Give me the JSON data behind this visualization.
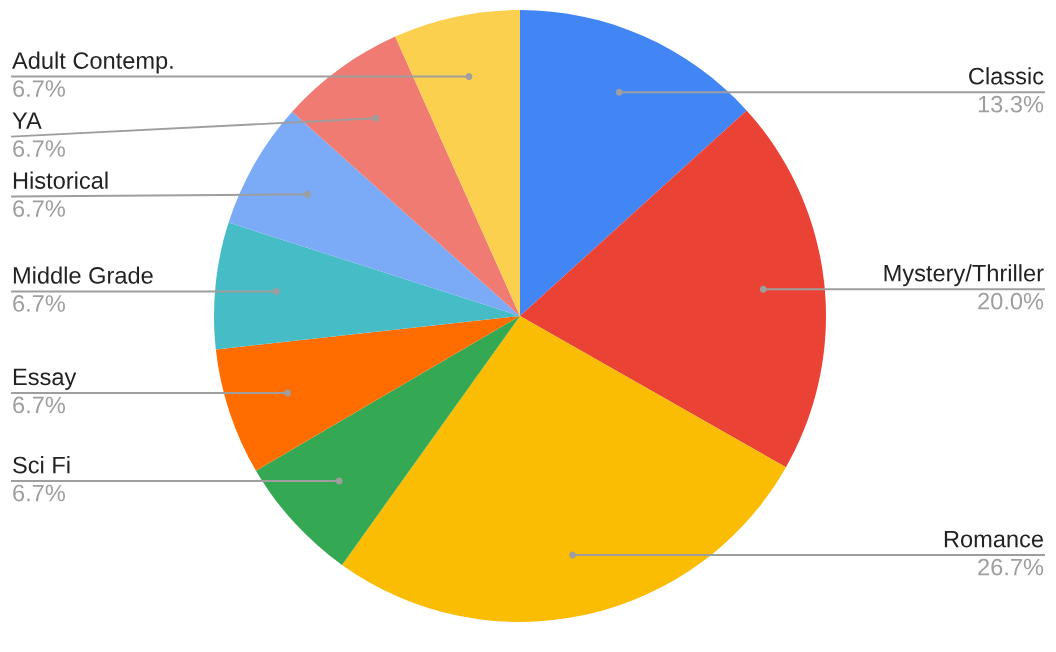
{
  "chart_data": {
    "type": "pie",
    "categories": [
      "Classic",
      "Mystery/Thriller",
      "Romance",
      "Sci Fi",
      "Essay",
      "Middle Grade",
      "Historical",
      "YA",
      "Adult Contemp."
    ],
    "values": [
      13.3,
      20.0,
      26.7,
      6.7,
      6.7,
      6.7,
      6.7,
      6.7,
      6.7
    ],
    "colors": [
      "#4285f4",
      "#ea4335",
      "#fbbc04",
      "#34a853",
      "#ff6d01",
      "#46bdc6",
      "#7baaf7",
      "#f07b72",
      "#fcd04f"
    ],
    "value_labels": [
      "13.3%",
      "20.0%",
      "26.7%",
      "6.7%",
      "6.7%",
      "6.7%",
      "6.7%",
      "6.7%",
      "6.7%"
    ]
  }
}
